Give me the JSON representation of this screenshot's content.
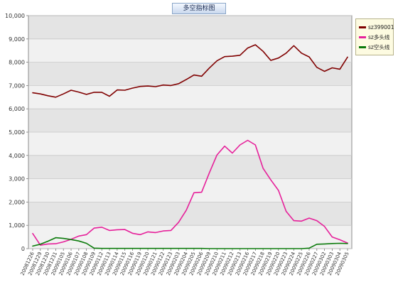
{
  "chart_title": "多空指标图",
  "chart_data": {
    "type": "line",
    "title": "多空指标图",
    "xlabel": "",
    "ylabel": "",
    "ylim": [
      0,
      10000
    ],
    "yticks": [
      0,
      1000,
      2000,
      3000,
      4000,
      5000,
      6000,
      7000,
      8000,
      9000,
      10000
    ],
    "ytick_labels": [
      "0",
      "1,000",
      "2,000",
      "3,000",
      "4,000",
      "5,000",
      "6,000",
      "7,000",
      "8,000",
      "9,000",
      "10,000"
    ],
    "grid": true,
    "legend_position": "top-right",
    "x_labels": [
      "20081226",
      "20081229",
      "20081230",
      "20081231",
      "20090105",
      "20090106",
      "20090107",
      "20090108",
      "20090109",
      "20090112",
      "20090113",
      "20090114",
      "20090115",
      "20090116",
      "20090119",
      "20090120",
      "20090121",
      "20090122",
      "20090123",
      "20090203",
      "20090204",
      "20090205",
      "20090206",
      "20090209",
      "20090210",
      "20090211",
      "20090212",
      "20090213",
      "20090216",
      "20090217",
      "20090218",
      "20090219",
      "20090220",
      "20090223",
      "20090224",
      "20090225",
      "20090226",
      "20090227",
      "20090302",
      "20090303",
      "20090304",
      "20090305"
    ],
    "series": [
      {
        "name": "sz399001",
        "color": "#800000",
        "values": [
          6690,
          6640,
          6560,
          6500,
          6640,
          6800,
          6720,
          6620,
          6710,
          6710,
          6540,
          6810,
          6800,
          6890,
          6960,
          6980,
          6950,
          7020,
          7000,
          7080,
          7260,
          7450,
          7400,
          7750,
          8060,
          8240,
          8260,
          8300,
          8610,
          8750,
          8470,
          8080,
          8180,
          8390,
          8710,
          8390,
          8230,
          7780,
          7610,
          7760,
          7700,
          8220
        ]
      },
      {
        "name": "sz多头线",
        "color": "#e6209a",
        "values": [
          650,
          150,
          200,
          210,
          290,
          400,
          540,
          600,
          880,
          920,
          780,
          810,
          820,
          660,
          600,
          720,
          690,
          760,
          780,
          1130,
          1650,
          2400,
          2420,
          3250,
          4020,
          4400,
          4100,
          4450,
          4650,
          4450,
          3450,
          2950,
          2500,
          1600,
          1200,
          1180,
          1310,
          1200,
          950,
          500,
          380,
          240
        ]
      },
      {
        "name": "sz空头线",
        "color": "#0a7a0a",
        "values": [
          110,
          190,
          320,
          470,
          440,
          390,
          330,
          230,
          20,
          10,
          10,
          10,
          10,
          10,
          10,
          10,
          10,
          10,
          10,
          10,
          10,
          10,
          10,
          0,
          0,
          0,
          0,
          0,
          0,
          0,
          0,
          0,
          0,
          0,
          0,
          0,
          20,
          190,
          200,
          220,
          230,
          220
        ]
      }
    ]
  }
}
